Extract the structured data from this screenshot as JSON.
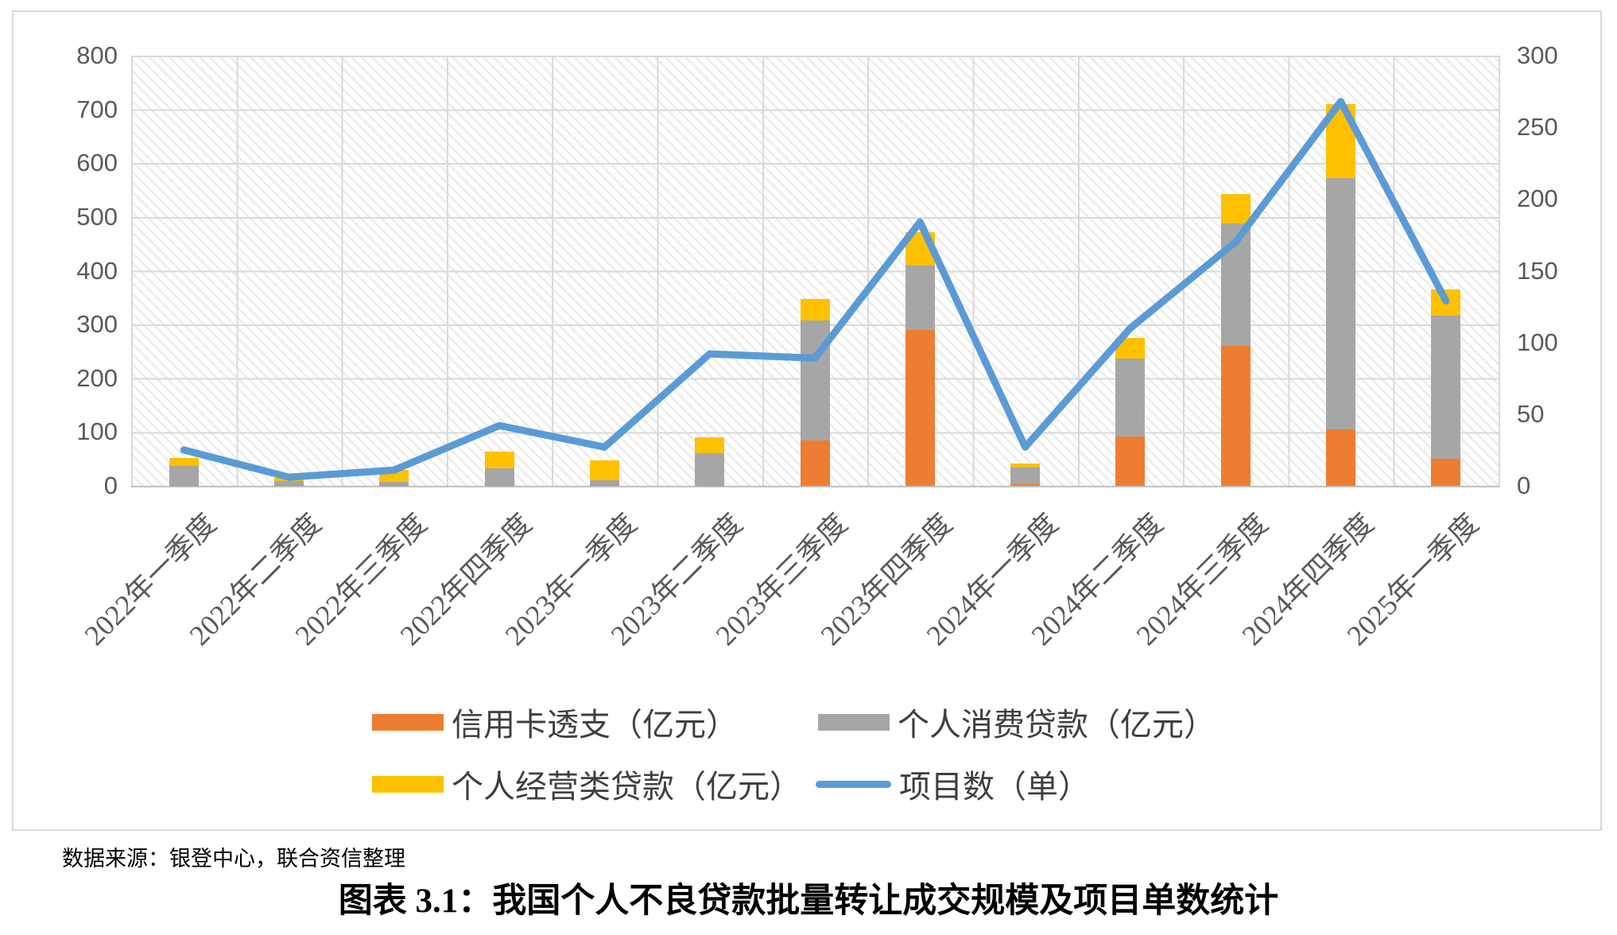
{
  "chart_data": {
    "type": "combo",
    "title": "图表 3.1：我国个人不良贷款批量转让成交规模及项目单数统计",
    "source": "数据来源：银登中心，联合资信整理",
    "categories": [
      "2022年一季度",
      "2022年二季度",
      "2022年三季度",
      "2022年四季度",
      "2023年一季度",
      "2023年二季度",
      "2023年三季度",
      "2023年四季度",
      "2024年一季度",
      "2024年二季度",
      "2024年三季度",
      "2024年四季度",
      "2025年一季度"
    ],
    "series": [
      {
        "name": "信用卡透支（亿元）",
        "type": "bar",
        "stacked": true,
        "color": "#ED7D31",
        "values": [
          2,
          1,
          1,
          2,
          2,
          2,
          85,
          290,
          3,
          92,
          260,
          105,
          50
        ]
      },
      {
        "name": "个人消费贷款（亿元）",
        "type": "bar",
        "stacked": true,
        "color": "#A6A6A6",
        "values": [
          35,
          8,
          7,
          31,
          9,
          58,
          222,
          120,
          31,
          145,
          228,
          468,
          266
        ]
      },
      {
        "name": "个人经营类贷款（亿元）",
        "type": "bar",
        "stacked": true,
        "color": "#FFC000",
        "values": [
          15,
          6,
          22,
          30,
          36,
          30,
          40,
          62,
          8,
          38,
          55,
          137,
          50
        ]
      },
      {
        "name": "项目数（单）",
        "type": "line",
        "axis": "right",
        "color": "#5B9BD5",
        "values": [
          25,
          6,
          11,
          42,
          27,
          92,
          89,
          184,
          27,
          110,
          170,
          268,
          129
        ]
      }
    ],
    "axes": {
      "left": {
        "min": 0,
        "max": 800,
        "ticks": [
          800,
          700,
          600,
          500,
          400,
          300,
          200,
          100,
          0
        ]
      },
      "right": {
        "min": 0,
        "max": 300,
        "ticks": [
          300,
          250,
          200,
          150,
          100,
          50,
          0
        ]
      }
    },
    "legend_position": "bottom",
    "grid": true,
    "colors": {
      "axis_text": "#595959",
      "gridline": "#D9D9D9",
      "frame_border": "#D9D9D9"
    }
  }
}
